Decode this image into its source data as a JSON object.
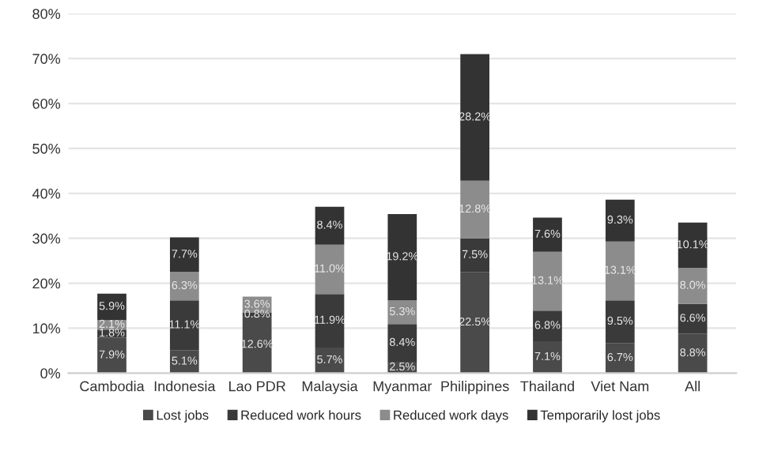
{
  "chart_data": {
    "type": "bar",
    "stacked": true,
    "categories": [
      "Cambodia",
      "Indonesia",
      "Lao PDR",
      "Malaysia",
      "Myanmar",
      "Philippines",
      "Thailand",
      "Viet Nam",
      "All"
    ],
    "series": [
      {
        "name": "Lost jobs",
        "color": "#4a4a4a",
        "values": [
          7.9,
          5.1,
          12.6,
          5.7,
          2.5,
          22.5,
          7.1,
          6.7,
          8.8
        ],
        "value_labels": [
          "7.9%",
          "5.1%",
          "12.6%",
          "5.7%",
          "2.5%",
          "22.5%",
          "7.1%",
          "6.7%",
          "8.8%"
        ]
      },
      {
        "name": "Reduced work hours",
        "color": "#3a3a3a",
        "values": [
          1.8,
          11.1,
          0.8,
          11.9,
          8.4,
          7.5,
          6.8,
          9.5,
          6.6
        ],
        "value_labels": [
          "1.8%",
          "11.1%",
          "0.8%",
          "11.9%",
          "8.4%",
          "7.5%",
          "6.8%",
          "9.5%",
          "6.6%"
        ]
      },
      {
        "name": "Reduced work days",
        "color": "#8c8c8c",
        "values": [
          2.1,
          6.3,
          3.6,
          11.0,
          5.3,
          12.8,
          13.1,
          13.1,
          8.0
        ],
        "value_labels": [
          "2.1%",
          "6.3%",
          "3.6%",
          "11.0%",
          "5.3%",
          "12.8%",
          "13.1%",
          "13.1%",
          "8.0%"
        ]
      },
      {
        "name": "Temporarily lost jobs",
        "color": "#333333",
        "values": [
          5.9,
          7.7,
          null,
          8.4,
          19.2,
          28.2,
          7.6,
          9.3,
          10.1
        ],
        "value_labels": [
          "5.9%",
          "7.7%",
          null,
          "8.4%",
          "19.2%",
          "28.2%",
          "7.6%",
          "9.3%",
          "10.1%"
        ]
      }
    ],
    "ylim": [
      0,
      80
    ],
    "yticks": [
      {
        "value": 0,
        "label": "0%"
      },
      {
        "value": 10,
        "label": "10%"
      },
      {
        "value": 20,
        "label": "20%"
      },
      {
        "value": 30,
        "label": "30%"
      },
      {
        "value": 40,
        "label": "40%"
      },
      {
        "value": 50,
        "label": "50%"
      },
      {
        "value": 60,
        "label": "60%"
      },
      {
        "value": 70,
        "label": "70%"
      },
      {
        "value": 80,
        "label": "80%"
      }
    ],
    "grid": "y",
    "legend": "bottom"
  }
}
